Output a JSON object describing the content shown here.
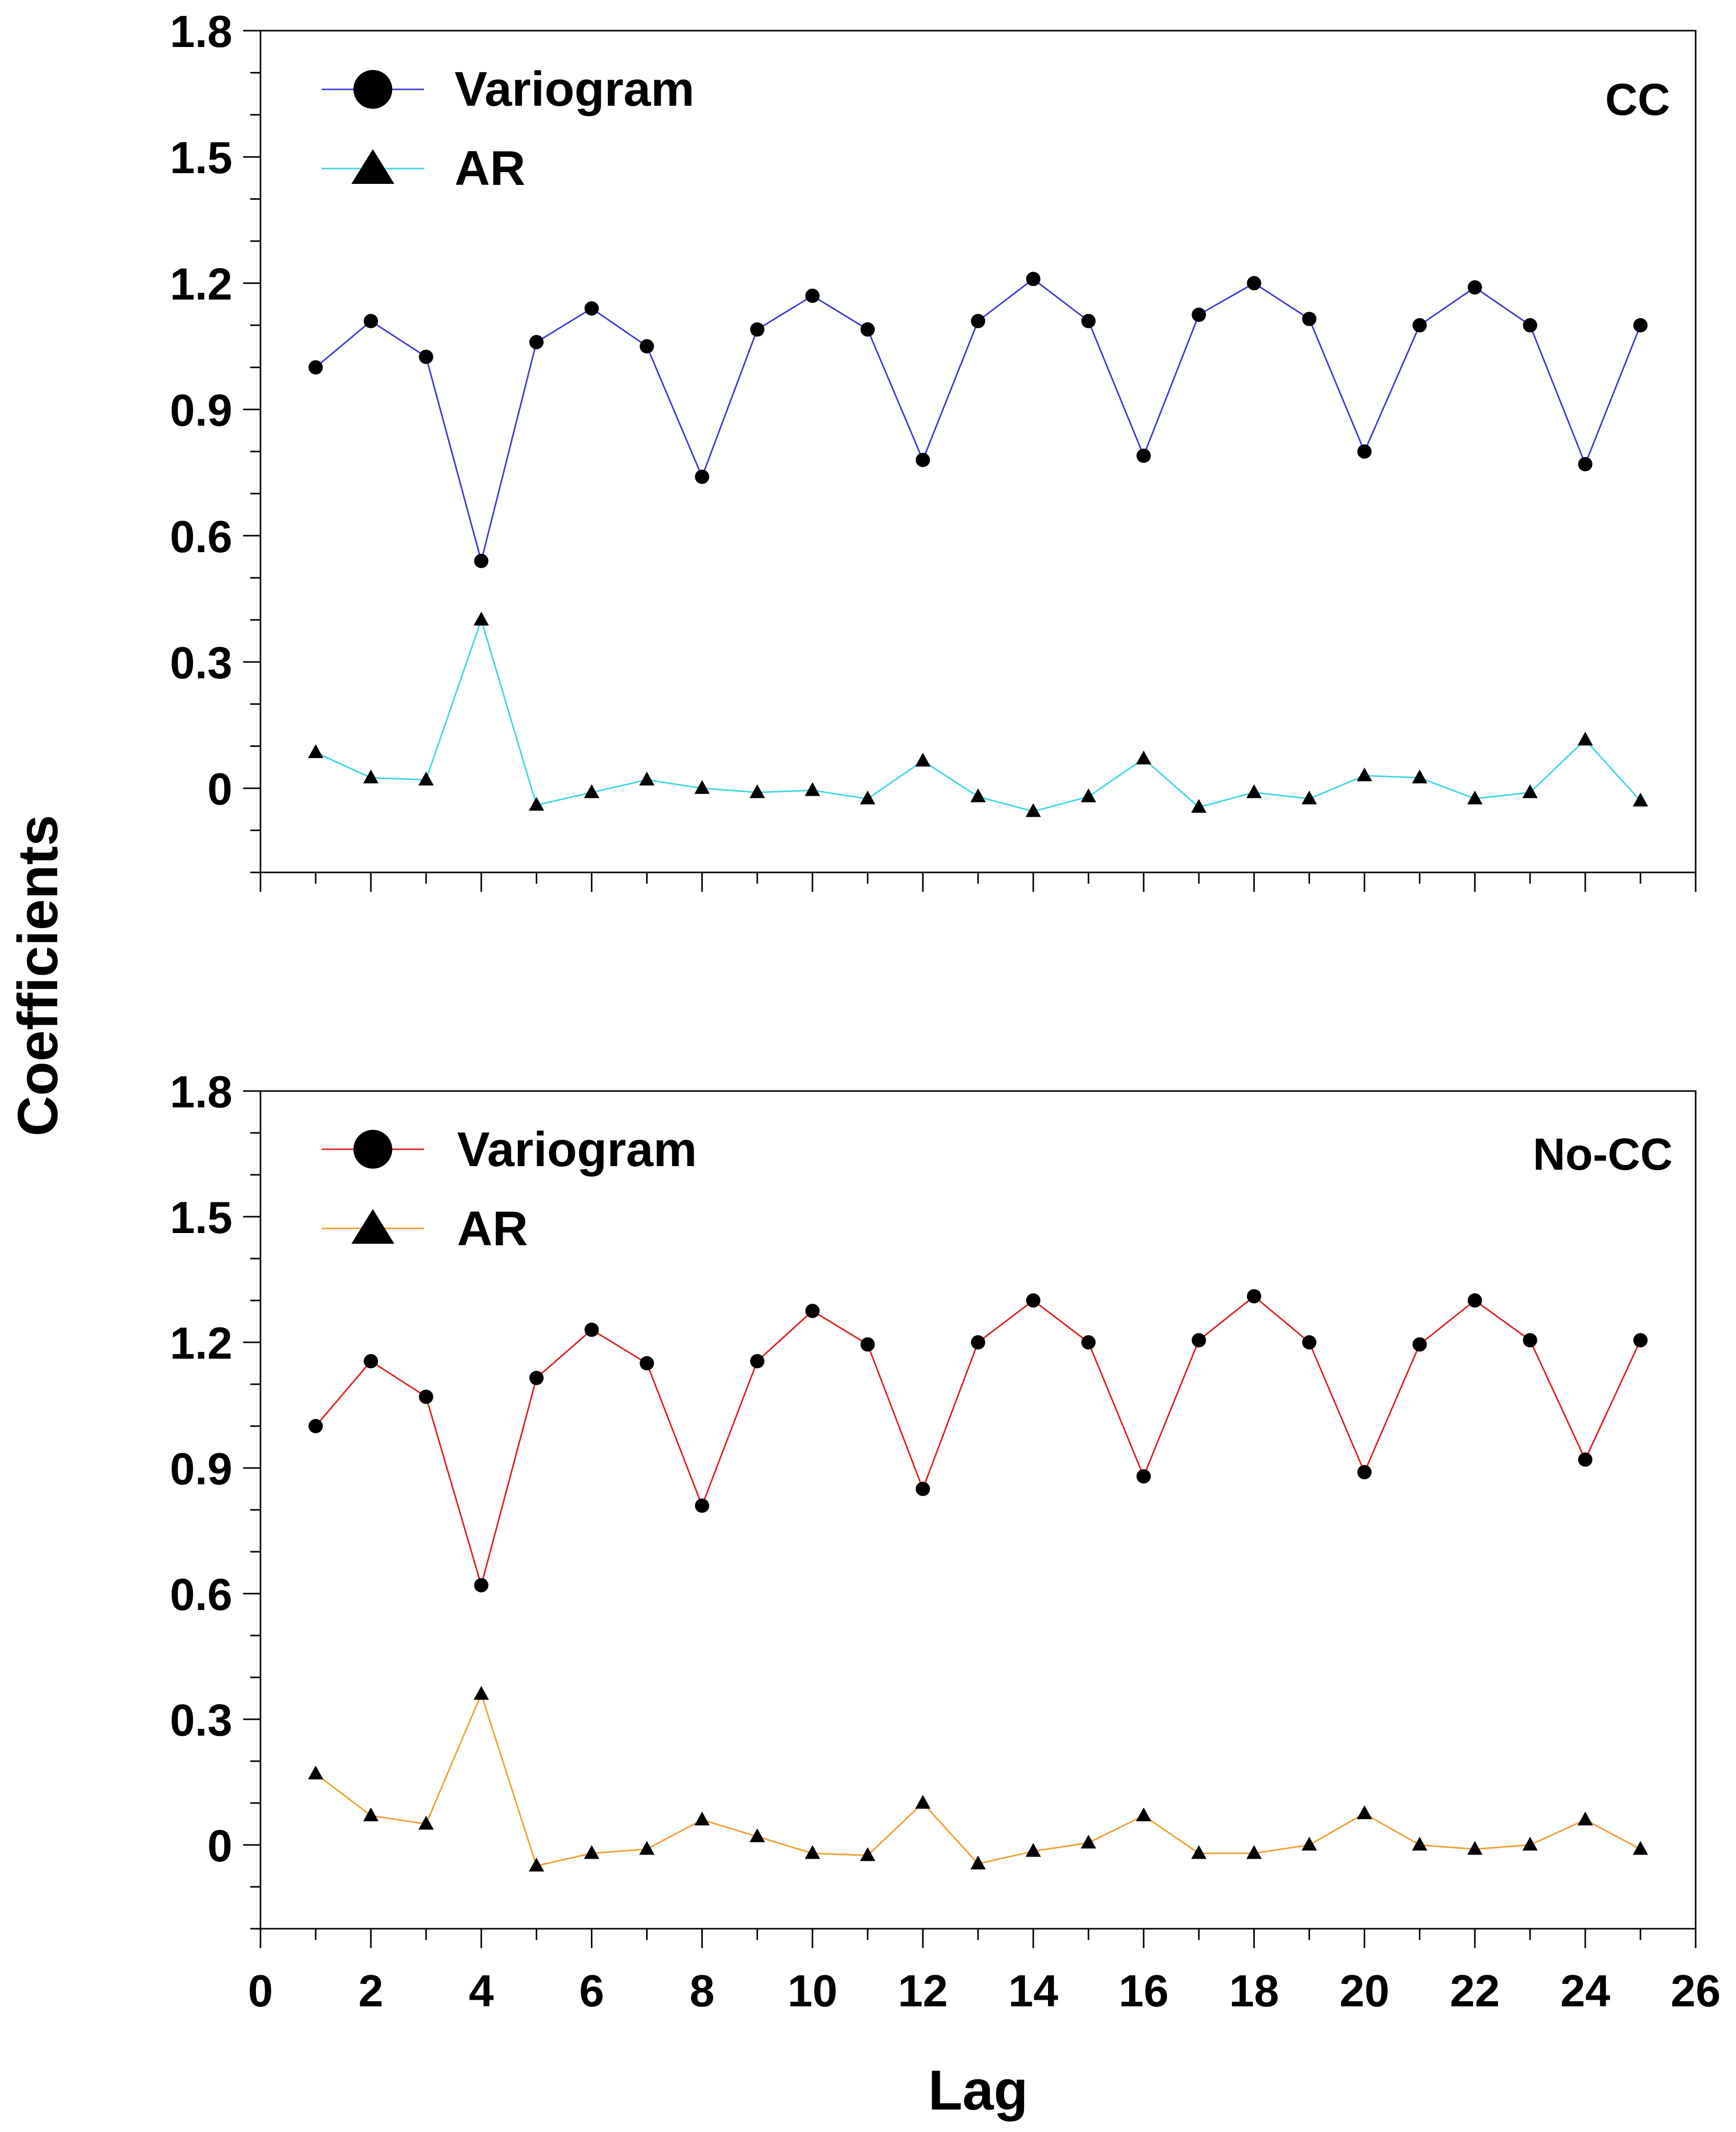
{
  "chart_data": [
    {
      "type": "line",
      "panel_label": "CC",
      "x": [
        1,
        2,
        3,
        4,
        5,
        6,
        7,
        8,
        9,
        10,
        11,
        12,
        13,
        14,
        15,
        16,
        17,
        18,
        19,
        20,
        21,
        22,
        23,
        24,
        25
      ],
      "series": [
        {
          "name": "Variogram",
          "marker": "circle",
          "color": "#3b3bd9",
          "values": [
            1.0,
            1.11,
            1.025,
            0.54,
            1.06,
            1.14,
            1.05,
            0.74,
            1.09,
            1.17,
            1.09,
            0.78,
            1.11,
            1.21,
            1.11,
            0.79,
            1.125,
            1.2,
            1.115,
            0.8,
            1.1,
            1.19,
            1.1,
            0.77,
            1.1
          ]
        },
        {
          "name": "AR",
          "marker": "triangle",
          "color": "#3fd8e0",
          "values": [
            0.085,
            0.025,
            0.02,
            0.4,
            -0.04,
            -0.01,
            0.02,
            0.0,
            -0.01,
            -0.005,
            -0.025,
            0.065,
            -0.02,
            -0.055,
            -0.02,
            0.07,
            -0.045,
            -0.01,
            -0.025,
            0.03,
            0.025,
            -0.025,
            -0.01,
            0.115,
            -0.03
          ]
        }
      ],
      "xlim": [
        0,
        26
      ],
      "ylim": [
        -0.2,
        1.8
      ],
      "yticks": [
        "1.8",
        "1.5",
        "1.2",
        "0.9",
        "0.6",
        "0.3",
        "0"
      ],
      "legend_position": "top-left"
    },
    {
      "type": "line",
      "panel_label": "No-CC",
      "x": [
        1,
        2,
        3,
        4,
        5,
        6,
        7,
        8,
        9,
        10,
        11,
        12,
        13,
        14,
        15,
        16,
        17,
        18,
        19,
        20,
        21,
        22,
        23,
        24,
        25
      ],
      "series": [
        {
          "name": "Variogram",
          "marker": "circle",
          "color": "#e02020",
          "values": [
            1.0,
            1.155,
            1.07,
            0.62,
            1.115,
            1.23,
            1.15,
            0.81,
            1.155,
            1.275,
            1.195,
            0.85,
            1.2,
            1.3,
            1.2,
            0.88,
            1.205,
            1.31,
            1.2,
            0.89,
            1.195,
            1.3,
            1.205,
            0.92,
            1.205
          ]
        },
        {
          "name": "AR",
          "marker": "triangle",
          "color": "#f0a030",
          "values": [
            0.17,
            0.07,
            0.05,
            0.36,
            -0.05,
            -0.02,
            -0.01,
            0.06,
            0.02,
            -0.02,
            -0.025,
            0.1,
            -0.045,
            -0.015,
            0.005,
            0.07,
            -0.02,
            -0.02,
            -0.0,
            0.075,
            -0.0,
            -0.01,
            -0.0,
            0.06,
            -0.01
          ]
        }
      ],
      "xlim": [
        0,
        26
      ],
      "ylim": [
        -0.2,
        1.8
      ],
      "yticks": [
        "1.8",
        "1.5",
        "1.2",
        "0.9",
        "0.6",
        "0.3",
        "0"
      ],
      "xticks": [
        "0",
        "2",
        "4",
        "6",
        "8",
        "10",
        "12",
        "14",
        "16",
        "18",
        "20",
        "22",
        "24",
        "26"
      ],
      "legend_position": "top-left"
    }
  ],
  "labels": {
    "ylabel": "Coefficients",
    "xlabel": "Lag"
  }
}
